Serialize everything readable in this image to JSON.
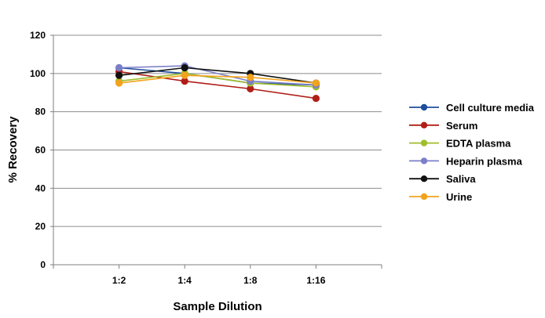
{
  "chart_data": {
    "type": "line",
    "title": "",
    "xlabel": "Sample Dilution",
    "ylabel": "% Recovery",
    "categories": [
      "1:2",
      "1:4",
      "1:8",
      "1:16"
    ],
    "ylim": [
      0,
      120
    ],
    "yticks": [
      0,
      20,
      40,
      60,
      80,
      100,
      120
    ],
    "grid": "horizontal",
    "legend_position": "right",
    "series": [
      {
        "name": "Cell culture media",
        "color": "#1f4e9b",
        "values": [
          103,
          100,
          95,
          94
        ]
      },
      {
        "name": "Serum",
        "color": "#b01e17",
        "values": [
          101,
          96,
          92,
          87
        ]
      },
      {
        "name": "EDTA plasma",
        "color": "#9fbe2b",
        "values": [
          96,
          100,
          95,
          93
        ]
      },
      {
        "name": "Heparin plasma",
        "color": "#7b7fc8",
        "values": [
          103,
          104,
          96,
          94
        ]
      },
      {
        "name": "Saliva",
        "color": "#111111",
        "values": [
          99,
          103,
          100,
          95
        ]
      },
      {
        "name": "Urine",
        "color": "#f3a21c",
        "values": [
          95,
          99,
          98,
          95
        ]
      }
    ]
  }
}
